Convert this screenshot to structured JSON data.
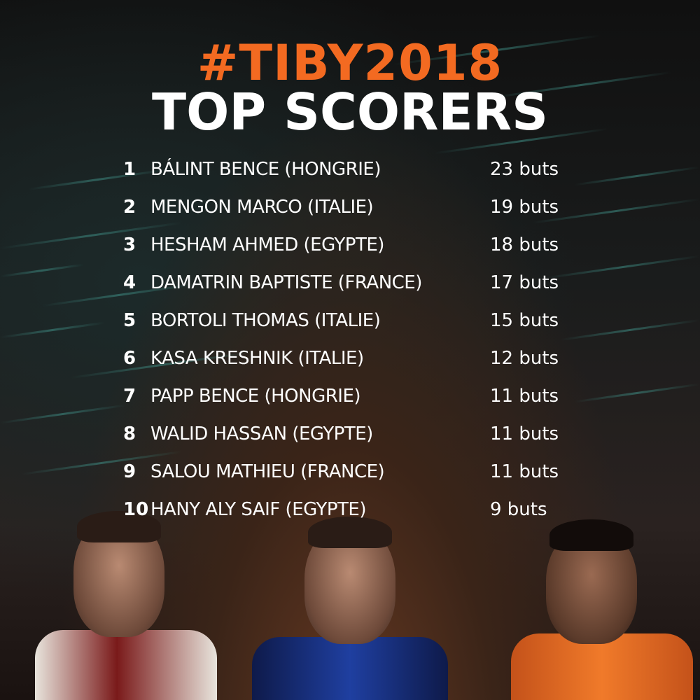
{
  "title": "#TIBY2018",
  "subtitle": "TOP SCORERS",
  "colors": {
    "accent": "#f36a21",
    "text": "#ffffff"
  },
  "scorers": [
    {
      "rank": "1",
      "name": "BÁLINT BENCE (HONGRIE)",
      "goals": "23 buts"
    },
    {
      "rank": "2",
      "name": "MENGON MARCO (ITALIE)",
      "goals": "19 buts"
    },
    {
      "rank": "3",
      "name": "HESHAM AHMED (EGYPTE)",
      "goals": "18 buts"
    },
    {
      "rank": "4",
      "name": "DAMATRIN BAPTISTE (FRANCE)",
      "goals": "17 buts"
    },
    {
      "rank": "5",
      "name": "BORTOLI THOMAS (ITALIE)",
      "goals": "15 buts"
    },
    {
      "rank": "6",
      "name": "KASA KRESHNIK (ITALIE)",
      "goals": "12 buts"
    },
    {
      "rank": "7",
      "name": "PAPP BENCE (HONGRIE)",
      "goals": "11 buts"
    },
    {
      "rank": "8",
      "name": "WALID HASSAN (EGYPTE)",
      "goals": "11 buts"
    },
    {
      "rank": "9",
      "name": "SALOU MATHIEU (FRANCE)",
      "goals": "11 buts"
    },
    {
      "rank": "10",
      "name": "HANY ALY SAIF (EGYPTE)",
      "goals": "9 buts"
    }
  ]
}
